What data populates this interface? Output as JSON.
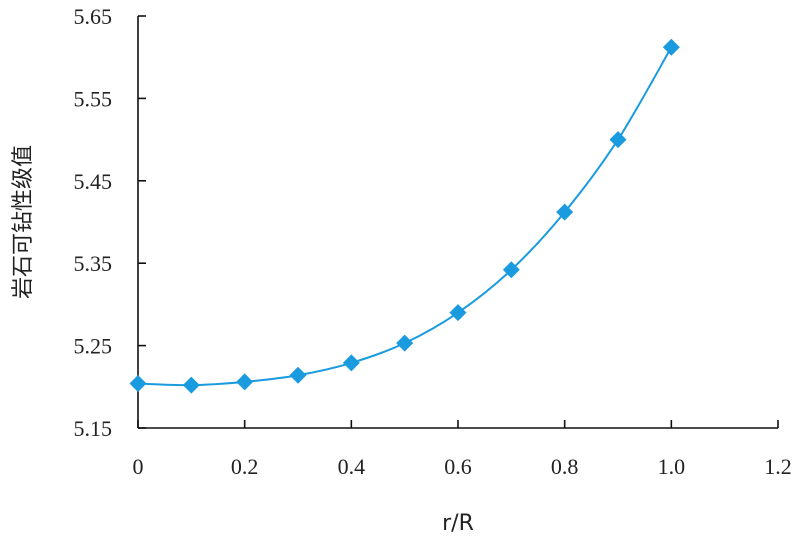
{
  "chart_data": {
    "type": "scatter",
    "title": "",
    "xlabel": "r/R",
    "ylabel": "岩石可钻性级值",
    "xlim": [
      0,
      1.2
    ],
    "ylim": [
      5.15,
      5.65
    ],
    "xticks": [
      "0",
      "0.2",
      "0.4",
      "0.6",
      "0.8",
      "1.0",
      "1.2"
    ],
    "yticks": [
      "5.15",
      "5.25",
      "5.35",
      "5.45",
      "5.55",
      "5.65"
    ],
    "grid": false,
    "marker": "diamond",
    "line": "smooth",
    "color": "#1a9be0",
    "series": [
      {
        "x": [
          0,
          0.1,
          0.2,
          0.3,
          0.4,
          0.5,
          0.6,
          0.7,
          0.8,
          0.9,
          1.0
        ],
        "y": [
          5.204,
          5.202,
          5.206,
          5.214,
          5.229,
          5.253,
          5.29,
          5.342,
          5.412,
          5.5,
          5.612
        ]
      }
    ]
  }
}
